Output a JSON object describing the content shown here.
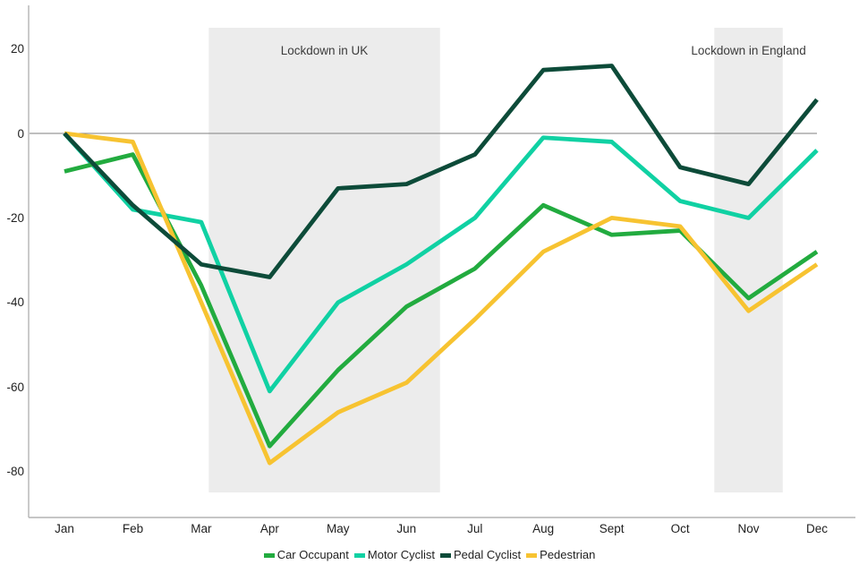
{
  "chart_data": {
    "type": "line",
    "title": "",
    "categories": [
      "Jan",
      "Feb",
      "Mar",
      "Apr",
      "May",
      "Jun",
      "Jul",
      "Aug",
      "Sept",
      "Oct",
      "Nov",
      "Dec"
    ],
    "series": [
      {
        "name": "Car Occupant",
        "color": "#22ab3f",
        "values": [
          -9,
          -5,
          -36,
          -74,
          -56,
          -41,
          -32,
          -17,
          -24,
          -23,
          -39,
          -28
        ]
      },
      {
        "name": "Motor Cyclist",
        "color": "#10d1a3",
        "values": [
          0,
          -18,
          -21,
          -61,
          -40,
          -31,
          -20,
          -1,
          -2,
          -16,
          -20,
          -4
        ]
      },
      {
        "name": "Pedal Cyclist",
        "color": "#0d4b39",
        "values": [
          0,
          -17,
          -31,
          -34,
          -13,
          -12,
          -5,
          15,
          16,
          -8,
          -12,
          8
        ]
      },
      {
        "name": "Pedestrian",
        "color": "#f7c331",
        "values": [
          0,
          -2,
          -40,
          -78,
          -66,
          -59,
          -44,
          -28,
          -20,
          -22,
          -42,
          -31
        ]
      }
    ],
    "draw_order": [
      1,
      0,
      3,
      2
    ],
    "y_axis": {
      "tick_values": [
        20,
        0,
        -20,
        -40,
        -60,
        -80
      ],
      "min": -84,
      "max": 25,
      "zero_line": true
    },
    "x_axis": {
      "gridlines": false
    },
    "regions": [
      {
        "label": "Lockdown in UK",
        "from_month": 2.11,
        "to_month": 5.49
      },
      {
        "label": "Lockdown in England",
        "from_month": 9.5,
        "to_month": 10.5
      }
    ],
    "legend_position": "bottom",
    "colors": {
      "region_fill": "#ececec",
      "zero_line": "#7f7f7f",
      "axis_line": "#b3b3b3"
    }
  }
}
